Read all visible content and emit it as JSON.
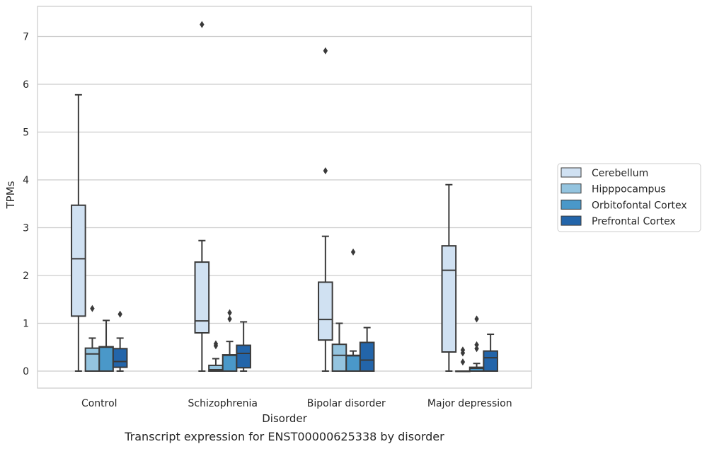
{
  "chart_data": {
    "type": "box",
    "caption": "Transcript expression for ENST00000625338 by disorder",
    "xlabel": "Disorder",
    "ylabel": "TPMs",
    "ylim": [
      -0.35,
      7.6
    ],
    "yticks": [
      0,
      1,
      2,
      3,
      4,
      5,
      6,
      7
    ],
    "grid": true,
    "legend_position": "right",
    "categories": [
      "Control",
      "Schizophrenia",
      "Bipolar disorder",
      "Major depression"
    ],
    "series": [
      {
        "name": "Cerebellum",
        "color": "#d0e1f2",
        "boxes": [
          {
            "whisker_low": 0,
            "q1": 1.15,
            "median": 2.35,
            "q3": 3.47,
            "whisker_high": 5.78,
            "outliers": []
          },
          {
            "whisker_low": 0,
            "q1": 0.8,
            "median": 1.05,
            "q3": 2.28,
            "whisker_high": 2.73,
            "outliers": [
              7.25
            ]
          },
          {
            "whisker_low": 0,
            "q1": 0.65,
            "median": 1.08,
            "q3": 1.86,
            "whisker_high": 2.82,
            "outliers": [
              4.19,
              6.7
            ]
          },
          {
            "whisker_low": 0,
            "q1": 0.4,
            "median": 2.11,
            "q3": 2.62,
            "whisker_high": 3.9,
            "outliers": []
          }
        ]
      },
      {
        "name": "Hipppocampus",
        "color": "#94c4df",
        "boxes": [
          {
            "whisker_low": 0,
            "q1": 0,
            "median": 0.36,
            "q3": 0.48,
            "whisker_high": 0.69,
            "outliers": [
              1.31
            ]
          },
          {
            "whisker_low": 0,
            "q1": 0,
            "median": 0.03,
            "q3": 0.12,
            "whisker_high": 0.26,
            "outliers": [
              0.53,
              0.57
            ]
          },
          {
            "whisker_low": 0,
            "q1": 0,
            "median": 0.33,
            "q3": 0.56,
            "whisker_high": 1.0,
            "outliers": []
          },
          {
            "whisker_low": 0,
            "q1": 0,
            "median": 0,
            "q3": 0,
            "whisker_high": 0,
            "outliers": [
              0.19,
              0.38,
              0.44
            ]
          }
        ]
      },
      {
        "name": "Orbitofontal Cortex",
        "color": "#4a98c9",
        "boxes": [
          {
            "whisker_low": 0,
            "q1": 0,
            "median": 0.5,
            "q3": 0.51,
            "whisker_high": 1.06,
            "outliers": []
          },
          {
            "whisker_low": 0,
            "q1": 0,
            "median": 0.33,
            "q3": 0.34,
            "whisker_high": 0.62,
            "outliers": [
              1.09,
              1.22
            ]
          },
          {
            "whisker_low": 0,
            "q1": 0,
            "median": 0.32,
            "q3": 0.33,
            "whisker_high": 0.42,
            "outliers": [
              2.49
            ]
          },
          {
            "whisker_low": 0,
            "q1": 0,
            "median": 0.06,
            "q3": 0.08,
            "whisker_high": 0.16,
            "outliers": [
              0.47,
              0.55,
              1.09
            ]
          }
        ]
      },
      {
        "name": "Prefrontal Cortex",
        "color": "#2365aa",
        "boxes": [
          {
            "whisker_low": 0,
            "q1": 0.08,
            "median": 0.2,
            "q3": 0.47,
            "whisker_high": 0.69,
            "outliers": [
              1.19
            ]
          },
          {
            "whisker_low": 0,
            "q1": 0.07,
            "median": 0.37,
            "q3": 0.54,
            "whisker_high": 1.03,
            "outliers": []
          },
          {
            "whisker_low": 0,
            "q1": 0,
            "median": 0.23,
            "q3": 0.6,
            "whisker_high": 0.91,
            "outliers": []
          },
          {
            "whisker_low": 0,
            "q1": 0,
            "median": 0.28,
            "q3": 0.42,
            "whisker_high": 0.77,
            "outliers": []
          }
        ]
      }
    ]
  }
}
